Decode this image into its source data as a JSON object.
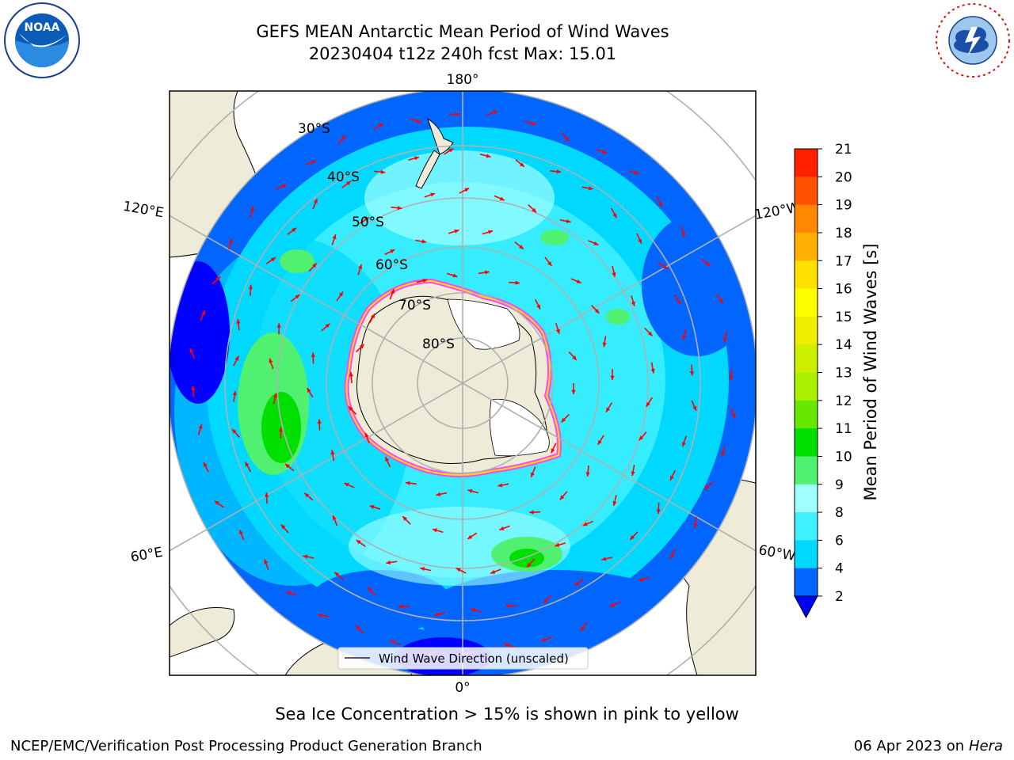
{
  "header": {
    "title_line1": "GEFS MEAN Antarctic Mean Period of Wind Waves",
    "title_line2": "20230404 t12z 240h fcst   Max: 15.01"
  },
  "logos": {
    "left": "noaa-logo",
    "right": "national-weather-service-logo"
  },
  "map": {
    "projection": "south-polar-stereographic",
    "lon_labels": {
      "top": "180°",
      "bottom": "0°",
      "upper_left": "120°E",
      "upper_right": "120°W",
      "lower_left": "60°E",
      "lower_right": "60°W"
    },
    "lat_labels": [
      "30°S",
      "40°S",
      "50°S",
      "60°S",
      "70°S",
      "80°S"
    ],
    "legend": {
      "label": "Wind Wave Direction (unscaled)",
      "arrow_color": "#ff0000"
    },
    "colors": {
      "land": "#eeecd8",
      "ice_edge": "#ff44ff",
      "ice_inner": "#ffe000",
      "gridline": "#b0b0b0"
    }
  },
  "colorbar": {
    "label": "Mean Period of Wind Waves [s]",
    "ticks": [
      "2",
      "4",
      "6",
      "8",
      "9",
      "10",
      "11",
      "12",
      "13",
      "14",
      "15",
      "16",
      "17",
      "18",
      "19",
      "20",
      "21"
    ],
    "colors": [
      "#0066ff",
      "#00d8ff",
      "#40f0ff",
      "#a0ffff",
      "#50f070",
      "#00e000",
      "#66e800",
      "#aaf000",
      "#ccf000",
      "#eeee00",
      "#ffff00",
      "#ffe000",
      "#ffb000",
      "#ff8800",
      "#ff5000",
      "#ff2000"
    ],
    "under_color": "#0000ff"
  },
  "footer": {
    "subtitle": "Sea Ice Concentration > 15% is shown in pink to yellow",
    "left": "NCEP/EMC/Verification Post Processing Product Generation Branch",
    "date": "06 Apr 2023 on ",
    "host": "Hera"
  }
}
